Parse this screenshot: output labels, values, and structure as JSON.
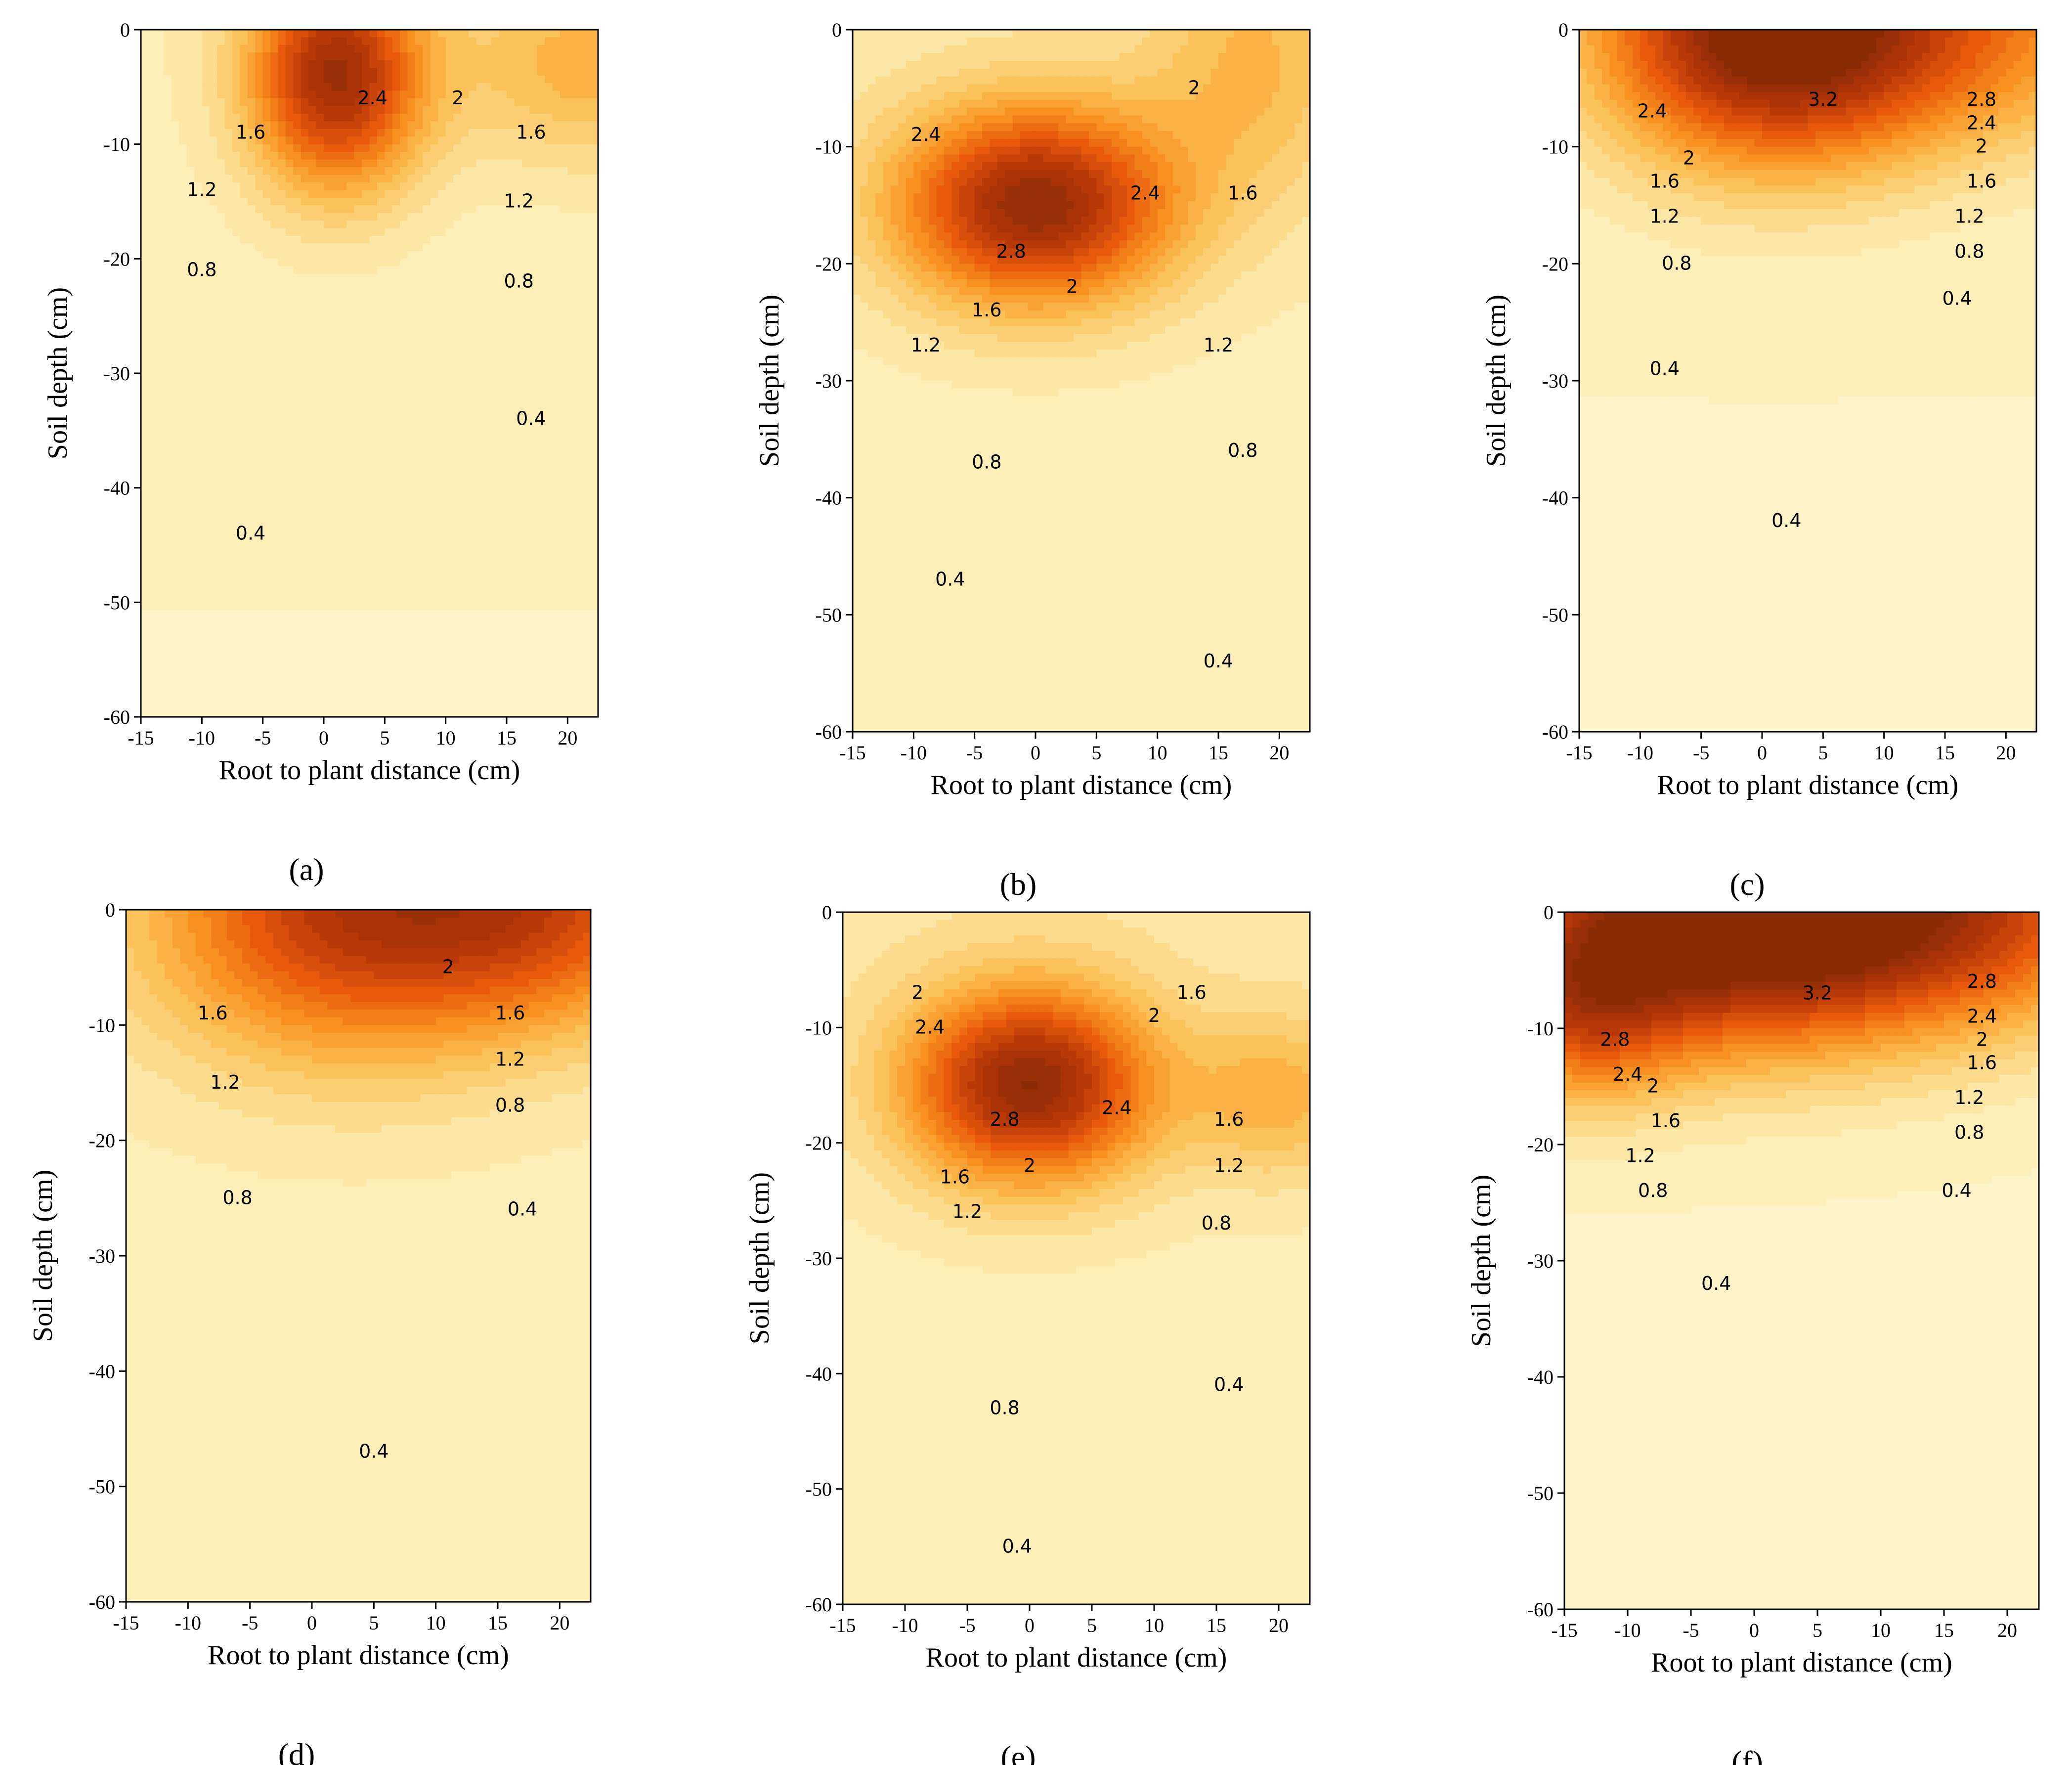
{
  "figure": {
    "xlabel": "Root to plant distance (cm)",
    "ylabel": "Soil depth (cm)",
    "x_ticks": [
      "-15",
      "-10",
      "-5",
      "0",
      "5",
      "10",
      "15",
      "20"
    ],
    "y_ticks": [
      "0",
      "-10",
      "-20",
      "-30",
      "-40",
      "-50",
      "-60"
    ]
  },
  "chart_data": [
    {
      "type": "heatmap",
      "panel_label": "(a)",
      "xlabel": "Root to plant distance (cm)",
      "ylabel": "Soil depth (cm)",
      "xlim": [
        -15,
        22.5
      ],
      "ylim": [
        -60,
        0
      ],
      "colormap": [
        "#fffbdc",
        "#fde7a6",
        "#fbc25a",
        "#f7901e",
        "#e8590c",
        "#b83808",
        "#8a2a05"
      ],
      "peaks": [
        {
          "x": 1,
          "y": -4,
          "amp": 2.9,
          "sx": 5,
          "sy": 7
        },
        {
          "x": 22,
          "y": -3,
          "amp": 1.0,
          "sx": 8,
          "sy": 6
        }
      ],
      "base": {
        "value": 0.45,
        "depth_decay": 0.008
      },
      "contour_labels": [
        {
          "text": "2.4",
          "x": 4,
          "y": -6
        },
        {
          "text": "2",
          "x": 11,
          "y": -6
        },
        {
          "text": "1.6",
          "x": -6,
          "y": -9
        },
        {
          "text": "1.6",
          "x": 17,
          "y": -9
        },
        {
          "text": "1.2",
          "x": -10,
          "y": -14
        },
        {
          "text": "1.2",
          "x": 16,
          "y": -15
        },
        {
          "text": "0.8",
          "x": -10,
          "y": -21
        },
        {
          "text": "0.8",
          "x": 16,
          "y": -22
        },
        {
          "text": "0.4",
          "x": 17,
          "y": -34
        },
        {
          "text": "0.4",
          "x": -6,
          "y": -44
        }
      ]
    },
    {
      "type": "heatmap",
      "panel_label": "(b)",
      "xlabel": "Root to plant distance (cm)",
      "ylabel": "Soil depth (cm)",
      "xlim": [
        -15,
        22.5
      ],
      "ylim": [
        -60,
        0
      ],
      "colormap": [
        "#fffbdc",
        "#fde7a6",
        "#fbc25a",
        "#f7901e",
        "#e8590c",
        "#b83808",
        "#8a2a05"
      ],
      "peaks": [
        {
          "x": 0,
          "y": -15,
          "amp": 3.0,
          "sx": 8,
          "sy": 6
        },
        {
          "x": 18,
          "y": -3,
          "amp": 0.8,
          "sx": 6,
          "sy": 8
        }
      ],
      "base": {
        "value": 0.55,
        "depth_decay": 0.009
      },
      "contour_labels": [
        {
          "text": "2.4",
          "x": -9,
          "y": -9
        },
        {
          "text": "2",
          "x": 13,
          "y": -5
        },
        {
          "text": "2.4",
          "x": 9,
          "y": -14
        },
        {
          "text": "1.6",
          "x": 17,
          "y": -14
        },
        {
          "text": "2.8",
          "x": -2,
          "y": -19
        },
        {
          "text": "2",
          "x": 3,
          "y": -22
        },
        {
          "text": "1.6",
          "x": -4,
          "y": -24
        },
        {
          "text": "1.2",
          "x": -9,
          "y": -27
        },
        {
          "text": "1.2",
          "x": 15,
          "y": -27
        },
        {
          "text": "0.8",
          "x": -4,
          "y": -37
        },
        {
          "text": "0.8",
          "x": 17,
          "y": -36
        },
        {
          "text": "0.4",
          "x": -7,
          "y": -47
        },
        {
          "text": "0.4",
          "x": 15,
          "y": -54
        }
      ]
    },
    {
      "type": "heatmap",
      "panel_label": "(c)",
      "xlabel": "Root to plant distance (cm)",
      "ylabel": "Soil depth (cm)",
      "xlim": [
        -15,
        22.5
      ],
      "ylim": [
        -60,
        0
      ],
      "colormap": [
        "#fffbdc",
        "#fde7a6",
        "#fbc25a",
        "#f7901e",
        "#e8590c",
        "#b83808",
        "#8a2a05"
      ],
      "peaks": [
        {
          "x": 1,
          "y": 0,
          "amp": 3.6,
          "sx": 10,
          "sy": 8
        },
        {
          "x": 20,
          "y": 0,
          "amp": 1.2,
          "sx": 10,
          "sy": 7
        }
      ],
      "base": {
        "value": 0.35,
        "depth_decay": 0.005
      },
      "contour_labels": [
        {
          "text": "3.2",
          "x": 5,
          "y": -6
        },
        {
          "text": "2.8",
          "x": 18,
          "y": -6
        },
        {
          "text": "2.4",
          "x": -9,
          "y": -7
        },
        {
          "text": "2.4",
          "x": 18,
          "y": -8
        },
        {
          "text": "2",
          "x": -6,
          "y": -11
        },
        {
          "text": "2",
          "x": 18,
          "y": -10
        },
        {
          "text": "1.6",
          "x": -8,
          "y": -13
        },
        {
          "text": "1.6",
          "x": 18,
          "y": -13
        },
        {
          "text": "1.2",
          "x": -8,
          "y": -16
        },
        {
          "text": "1.2",
          "x": 17,
          "y": -16
        },
        {
          "text": "0.8",
          "x": -7,
          "y": -20
        },
        {
          "text": "0.8",
          "x": 17,
          "y": -19
        },
        {
          "text": "0.4",
          "x": 16,
          "y": -23
        },
        {
          "text": "0.4",
          "x": -8,
          "y": -29
        },
        {
          "text": "0.4",
          "x": 2,
          "y": -42
        }
      ]
    },
    {
      "type": "heatmap",
      "panel_label": "(d)",
      "xlabel": "Root to plant distance (cm)",
      "ylabel": "Soil depth (cm)",
      "xlim": [
        -15,
        22.5
      ],
      "ylim": [
        -60,
        0
      ],
      "colormap": [
        "#fffbdc",
        "#fde7a6",
        "#fbc25a",
        "#f7901e",
        "#e8590c",
        "#b83808",
        "#8a2a05"
      ],
      "peaks": [
        {
          "x": 3,
          "y": 0,
          "amp": 2.4,
          "sx": 11,
          "sy": 9
        },
        {
          "x": 20,
          "y": 0,
          "amp": 1.6,
          "sx": 9,
          "sy": 7
        }
      ],
      "base": {
        "value": 0.5,
        "depth_decay": 0.007
      },
      "contour_labels": [
        {
          "text": "2",
          "x": 11,
          "y": -5
        },
        {
          "text": "1.6",
          "x": -8,
          "y": -9
        },
        {
          "text": "1.6",
          "x": 16,
          "y": -9
        },
        {
          "text": "1.2",
          "x": -7,
          "y": -15
        },
        {
          "text": "1.2",
          "x": 16,
          "y": -13
        },
        {
          "text": "0.8",
          "x": 16,
          "y": -17
        },
        {
          "text": "0.8",
          "x": -6,
          "y": -25
        },
        {
          "text": "0.4",
          "x": 17,
          "y": -26
        },
        {
          "text": "0.4",
          "x": 5,
          "y": -47
        }
      ]
    },
    {
      "type": "heatmap",
      "panel_label": "(e)",
      "xlabel": "Root to plant distance (cm)",
      "ylabel": "Soil depth (cm)",
      "xlim": [
        -15,
        22.5
      ],
      "ylim": [
        -60,
        0
      ],
      "colormap": [
        "#fffbdc",
        "#fde7a6",
        "#fbc25a",
        "#f7901e",
        "#e8590c",
        "#b83808",
        "#8a2a05"
      ],
      "peaks": [
        {
          "x": 0,
          "y": -15,
          "amp": 3.0,
          "sx": 7,
          "sy": 6
        },
        {
          "x": 20,
          "y": -16,
          "amp": 0.9,
          "sx": 5,
          "sy": 5
        }
      ],
      "base": {
        "value": 0.6,
        "depth_decay": 0.011
      },
      "contour_labels": [
        {
          "text": "2",
          "x": -9,
          "y": -7
        },
        {
          "text": "2.4",
          "x": -8,
          "y": -10
        },
        {
          "text": "1.6",
          "x": 13,
          "y": -7
        },
        {
          "text": "2",
          "x": 10,
          "y": -9
        },
        {
          "text": "2.4",
          "x": 7,
          "y": -17
        },
        {
          "text": "1.6",
          "x": 16,
          "y": -18
        },
        {
          "text": "2.8",
          "x": -2,
          "y": -18
        },
        {
          "text": "2",
          "x": 0,
          "y": -22
        },
        {
          "text": "1.6",
          "x": -6,
          "y": -23
        },
        {
          "text": "1.2",
          "x": -5,
          "y": -26
        },
        {
          "text": "1.2",
          "x": 16,
          "y": -22
        },
        {
          "text": "0.8",
          "x": 15,
          "y": -27
        },
        {
          "text": "0.8",
          "x": -2,
          "y": -43
        },
        {
          "text": "0.4",
          "x": 16,
          "y": -41
        },
        {
          "text": "0.4",
          "x": -1,
          "y": -55
        }
      ]
    },
    {
      "type": "heatmap",
      "panel_label": "(f)",
      "xlabel": "Root to plant distance (cm)",
      "ylabel": "Soil depth (cm)",
      "xlim": [
        -15,
        22.5
      ],
      "ylim": [
        -60,
        0
      ],
      "colormap": [
        "#fffbdc",
        "#fde7a6",
        "#fbc25a",
        "#f7901e",
        "#e8590c",
        "#b83808",
        "#8a2a05"
      ],
      "peaks": [
        {
          "x": 0,
          "y": 0,
          "amp": 4.0,
          "sx": 12,
          "sy": 8
        },
        {
          "x": -14,
          "y": -8,
          "amp": 1.8,
          "sx": 6,
          "sy": 6
        },
        {
          "x": 20,
          "y": 0,
          "amp": 1.6,
          "sx": 10,
          "sy": 7
        }
      ],
      "base": {
        "value": 0.3,
        "depth_decay": 0.004
      },
      "contour_labels": [
        {
          "text": "3.2",
          "x": 5,
          "y": -7
        },
        {
          "text": "2.8",
          "x": 18,
          "y": -6
        },
        {
          "text": "2.8",
          "x": -11,
          "y": -11
        },
        {
          "text": "2.4",
          "x": 18,
          "y": -9
        },
        {
          "text": "2.4",
          "x": -10,
          "y": -14
        },
        {
          "text": "2",
          "x": 18,
          "y": -11
        },
        {
          "text": "2",
          "x": -8,
          "y": -15
        },
        {
          "text": "1.6",
          "x": 18,
          "y": -13
        },
        {
          "text": "1.6",
          "x": -7,
          "y": -18
        },
        {
          "text": "1.2",
          "x": 17,
          "y": -16
        },
        {
          "text": "1.2",
          "x": -9,
          "y": -21
        },
        {
          "text": "0.8",
          "x": 17,
          "y": -19
        },
        {
          "text": "0.8",
          "x": -8,
          "y": -24
        },
        {
          "text": "0.4",
          "x": 16,
          "y": -24
        },
        {
          "text": "0.4",
          "x": -3,
          "y": -32
        }
      ]
    }
  ]
}
